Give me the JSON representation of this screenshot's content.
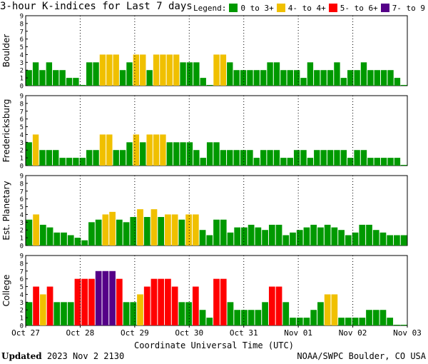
{
  "title": "3-hour K-indices for Last 7 days",
  "legend": {
    "label": "Legend:",
    "items": [
      {
        "label": "0 to 3+",
        "color": "#009900"
      },
      {
        "label": "4- to 4+",
        "color": "#f0c000"
      },
      {
        "label": "5- to 6+",
        "color": "#ff0000"
      },
      {
        "label": "7- to 9",
        "color": "#550088"
      }
    ]
  },
  "footer": {
    "updated_label": "Updated",
    "updated_value": "2023 Nov  2 2130",
    "credit": "NOAA/SWPC Boulder, CO USA"
  },
  "chart_data": {
    "type": "bar",
    "xlabel": "Coordinate Universal Time (UTC)",
    "x_ticks": [
      "Oct 27",
      "Oct 28",
      "Oct 29",
      "Oct 30",
      "Oct 31",
      "Nov 01",
      "Nov 02",
      "Nov 03"
    ],
    "ylim": [
      0,
      9
    ],
    "y_ticks": [
      0,
      1,
      2,
      3,
      4,
      5,
      6,
      7,
      8,
      9
    ],
    "color_scale": [
      {
        "range": "0 to 3+",
        "color": "#009900"
      },
      {
        "range": "4- to 4+",
        "color": "#f0c000"
      },
      {
        "range": "5- to 6+",
        "color": "#ff0000"
      },
      {
        "range": "7- to 9",
        "color": "#550088"
      }
    ],
    "panels": [
      {
        "name": "Boulder",
        "values": [
          2,
          3,
          2,
          3,
          2,
          2,
          1,
          1,
          0,
          3,
          3,
          4,
          4,
          4,
          2,
          3,
          4,
          4,
          2,
          4,
          4,
          4,
          4,
          3,
          3,
          3,
          1,
          0,
          4,
          4,
          3,
          2,
          2,
          2,
          2,
          2,
          3,
          3,
          2,
          2,
          2,
          1,
          3,
          2,
          2,
          2,
          3,
          1,
          2,
          2,
          3,
          2,
          2,
          2,
          2,
          1,
          0
        ]
      },
      {
        "name": "Fredericksburg",
        "values": [
          3,
          4,
          2,
          2,
          2,
          1,
          1,
          1,
          1,
          2,
          2,
          4,
          4,
          2,
          2,
          3,
          4,
          3,
          4,
          4,
          4,
          3,
          3,
          3,
          3,
          2,
          1,
          3,
          3,
          2,
          2,
          2,
          2,
          2,
          1,
          2,
          2,
          2,
          1,
          1,
          2,
          2,
          1,
          2,
          2,
          2,
          2,
          2,
          1,
          2,
          2,
          1,
          1,
          1,
          1,
          1,
          0
        ]
      },
      {
        "name": "Est. Planetary",
        "values": [
          3.33,
          4,
          2.67,
          2.33,
          1.67,
          1.67,
          1.33,
          1,
          0.67,
          3,
          3.33,
          4,
          4.33,
          3.33,
          3,
          3.67,
          4.67,
          3.67,
          4.67,
          3.67,
          4,
          4,
          3.33,
          4,
          4,
          2,
          1.33,
          3.33,
          3.33,
          1.67,
          2.33,
          2.33,
          2.67,
          2.33,
          2,
          2.67,
          2.67,
          1.33,
          1.67,
          2,
          2.33,
          2.67,
          2.33,
          2.67,
          2.33,
          2,
          1.33,
          1.67,
          2.67,
          2.67,
          2,
          1.67,
          1.33,
          1.33,
          1.33
        ]
      },
      {
        "name": "College",
        "values": [
          3,
          5,
          4,
          5,
          3,
          3,
          3,
          6,
          6,
          6,
          7,
          7,
          7,
          6,
          3,
          3,
          4,
          5,
          6,
          6,
          6,
          5,
          3,
          3,
          5,
          2,
          1,
          6,
          6,
          3,
          2,
          2,
          2,
          2,
          3,
          5,
          5,
          3,
          1,
          1,
          1,
          2,
          3,
          4,
          4,
          1,
          1,
          1,
          1,
          2,
          2,
          2,
          1,
          0,
          0
        ]
      }
    ]
  }
}
